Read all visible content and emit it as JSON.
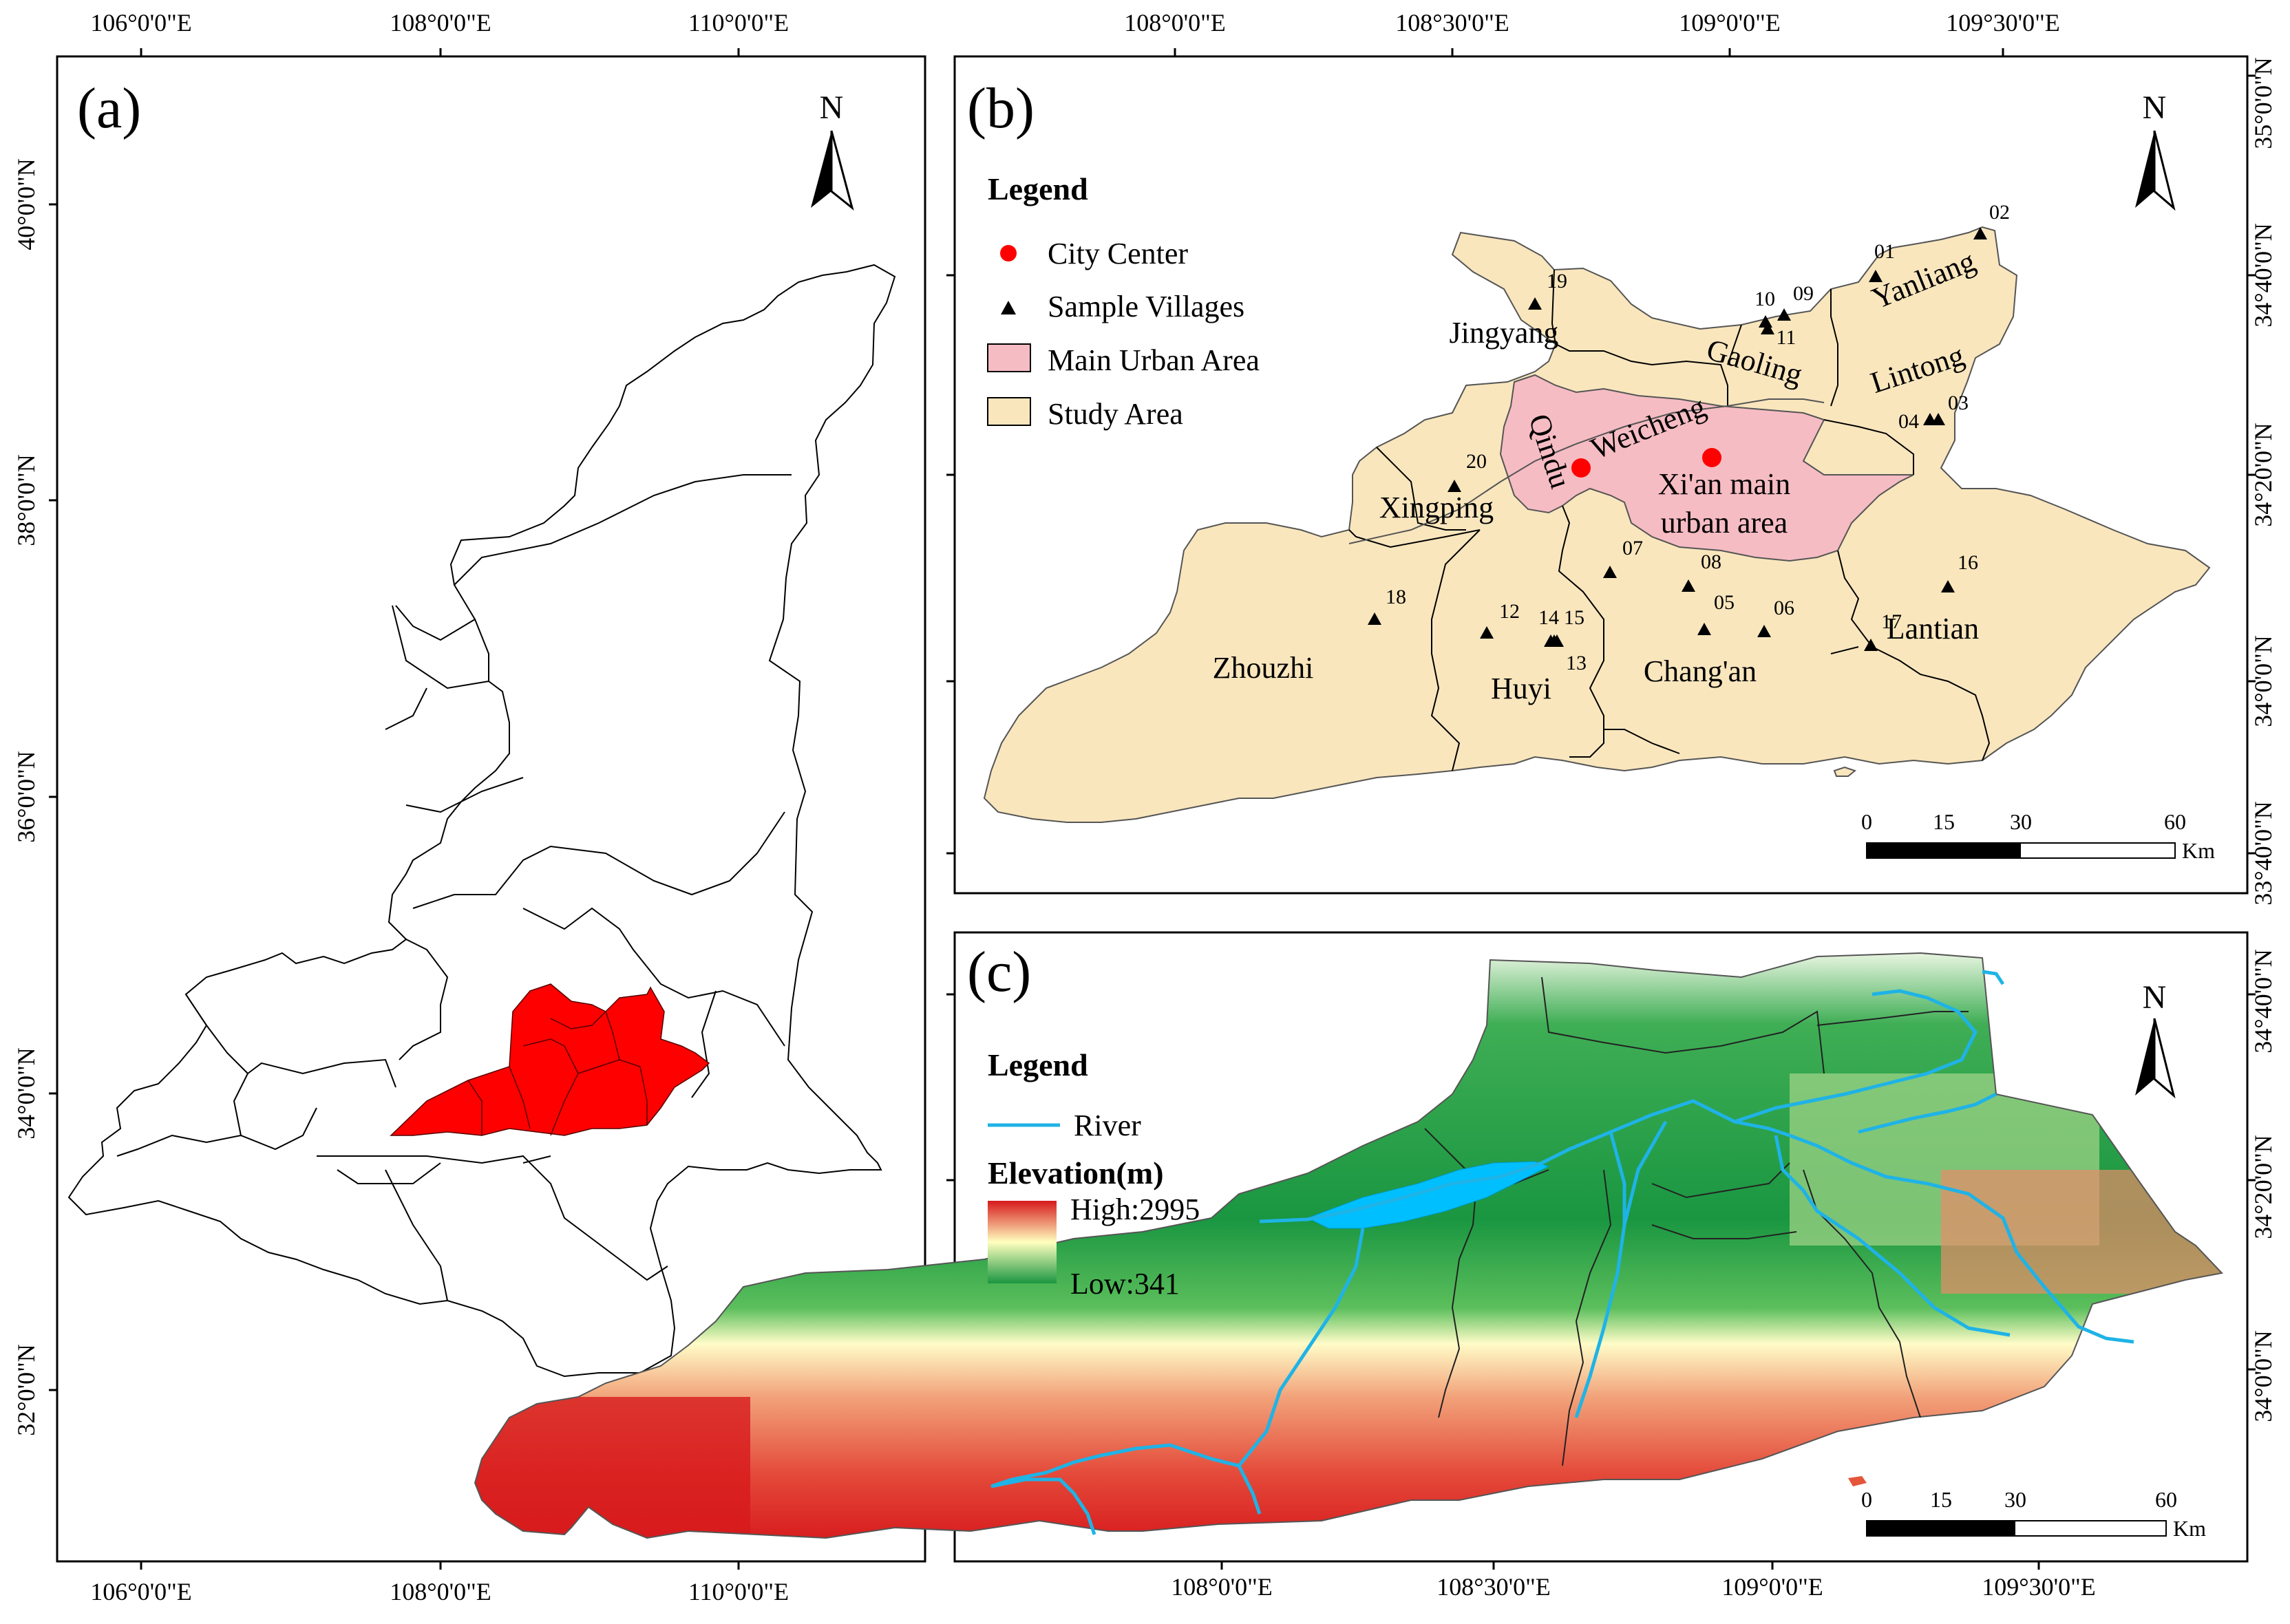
{
  "panels": {
    "a": {
      "label": "(a)",
      "north": "N",
      "x_ticks": [
        "106°0'0\"E",
        "108°0'0\"E",
        "110°0'0\"E"
      ],
      "y_ticks": [
        "40°0'0\"N",
        "38°0'0\"N",
        "36°0'0\"N",
        "34°0'0\"N",
        "32°0'0\"N"
      ]
    },
    "b": {
      "label": "(b)",
      "north": "N",
      "x_ticks": [
        "108°0'0\"E",
        "108°30'0\"E",
        "109°0'0\"E",
        "109°30'0\"E"
      ],
      "y_ticks": [
        "35°0'0\"N",
        "34°40'0\"N",
        "34°20'0\"N",
        "34°0'0\"N",
        "33°40'0\"N"
      ],
      "legend": {
        "title": "Legend",
        "items": [
          "City Center",
          "Sample Villages",
          "Main Urban Area",
          "Study Area"
        ]
      },
      "regions": [
        "Jingyang",
        "Gaoling",
        "Yanliang",
        "Lintong",
        "Qindu",
        "Weicheng",
        "Xingping",
        "Xi'an main",
        "urban area",
        "Zhouzhi",
        "Huyi",
        "Chang'an",
        "Lantian"
      ],
      "villages": [
        "01",
        "02",
        "03",
        "04",
        "05",
        "06",
        "07",
        "08",
        "09",
        "10",
        "11",
        "12",
        "13",
        "14",
        "15",
        "16",
        "17",
        "18",
        "19",
        "20"
      ],
      "scale": {
        "ticks": [
          "0",
          "15",
          "30",
          "60"
        ],
        "unit": "Km"
      },
      "colors": {
        "study_area": "#f9e6bd",
        "urban": "#f6bcc3",
        "city_center": "#ff0000"
      }
    },
    "c": {
      "label": "(c)",
      "north": "N",
      "x_ticks": [
        "108°0'0\"E",
        "108°30'0\"E",
        "109°0'0\"E",
        "109°30'0\"E"
      ],
      "y_ticks": [
        "34°40'0\"N",
        "34°20'0\"N",
        "34°0'0\"N"
      ],
      "legend": {
        "title": "Legend",
        "river": "River",
        "elevation_title": "Elevation(m)",
        "high": "High:2995",
        "low": "Low:341"
      },
      "scale": {
        "ticks": [
          "0",
          "15",
          "30",
          "60"
        ],
        "unit": "Km"
      },
      "colors": {
        "river": "#1fb3e6",
        "high": "#d7191c",
        "mid": "#ffffbf",
        "low": "#1a9641"
      }
    }
  }
}
